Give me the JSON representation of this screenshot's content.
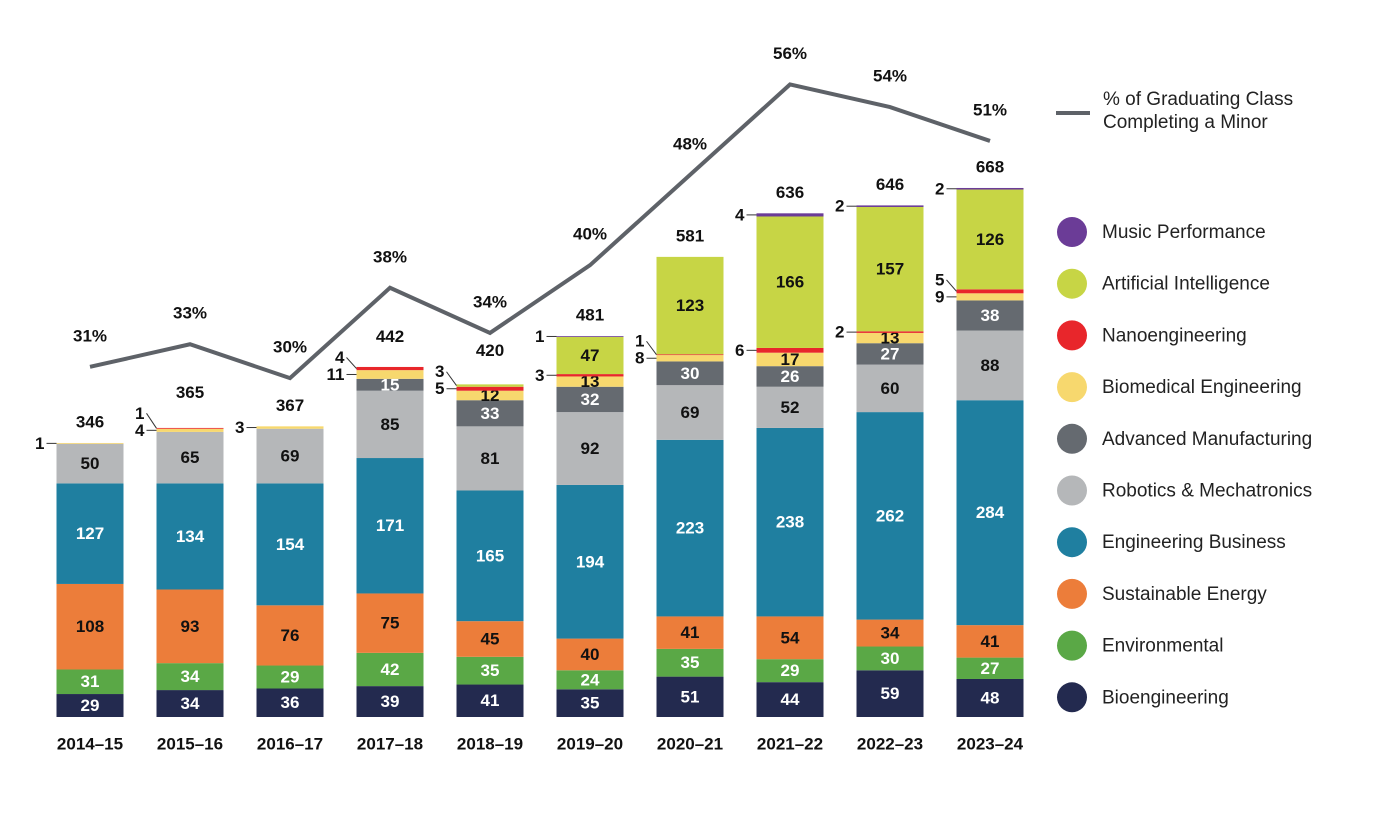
{
  "chart_data": {
    "type": "bar",
    "stacked": true,
    "categories": [
      "2014–15",
      "2015–16",
      "2016–17",
      "2017–18",
      "2018–19",
      "2019–20",
      "2020–21",
      "2021–22",
      "2022–23",
      "2023–24"
    ],
    "ylim": [
      0,
      870
    ],
    "y2lim": [
      0,
      61
    ],
    "series": [
      {
        "name": "Bioengineering",
        "color": "#232a4f",
        "values": [
          29,
          34,
          36,
          39,
          41,
          35,
          51,
          44,
          59,
          48
        ]
      },
      {
        "name": "Environmental",
        "color": "#5aa846",
        "values": [
          31,
          34,
          29,
          42,
          35,
          24,
          35,
          29,
          30,
          27
        ]
      },
      {
        "name": "Sustainable Energy",
        "color": "#ec7d3a",
        "values": [
          108,
          93,
          76,
          75,
          45,
          40,
          41,
          54,
          34,
          41
        ]
      },
      {
        "name": "Engineering Business",
        "color": "#1f7fa0",
        "values": [
          127,
          134,
          154,
          171,
          165,
          194,
          223,
          238,
          262,
          284
        ]
      },
      {
        "name": "Robotics & Mechatronics",
        "color": "#b5b7b9",
        "values": [
          50,
          65,
          69,
          85,
          81,
          92,
          69,
          52,
          60,
          88
        ]
      },
      {
        "name": "Advanced Manufacturing",
        "color": "#656a70",
        "values": [
          null,
          null,
          null,
          15,
          33,
          32,
          30,
          26,
          27,
          38
        ]
      },
      {
        "name": "Biomedical Engineering",
        "color": "#f7d86e",
        "values": [
          1,
          4,
          3,
          11,
          12,
          13,
          8,
          17,
          13,
          9
        ]
      },
      {
        "name": "Nanoengineering",
        "color": "#e8262b",
        "values": [
          null,
          1,
          null,
          4,
          5,
          3,
          1,
          6,
          2,
          5
        ]
      },
      {
        "name": "Artificial Intelligence",
        "color": "#c7d545",
        "values": [
          null,
          null,
          null,
          null,
          3,
          47,
          123,
          166,
          157,
          126
        ]
      },
      {
        "name": "Music Performance",
        "color": "#6b3c97",
        "values": [
          null,
          null,
          null,
          null,
          null,
          1,
          null,
          4,
          2,
          2
        ]
      },
      {
        "name": "% of Graduating Class Completing a Minor",
        "type": "line",
        "axis": "y2",
        "color": "#5e6268",
        "values": [
          31,
          33,
          30,
          38,
          34,
          40,
          48,
          56,
          54,
          51
        ],
        "value_labels": [
          "31%",
          "33%",
          "30%",
          "38%",
          "34%",
          "40%",
          "48%",
          "56%",
          "54%",
          "51%"
        ]
      }
    ],
    "totals": [
      346,
      365,
      367,
      442,
      420,
      481,
      581,
      636,
      646,
      668
    ]
  }
}
